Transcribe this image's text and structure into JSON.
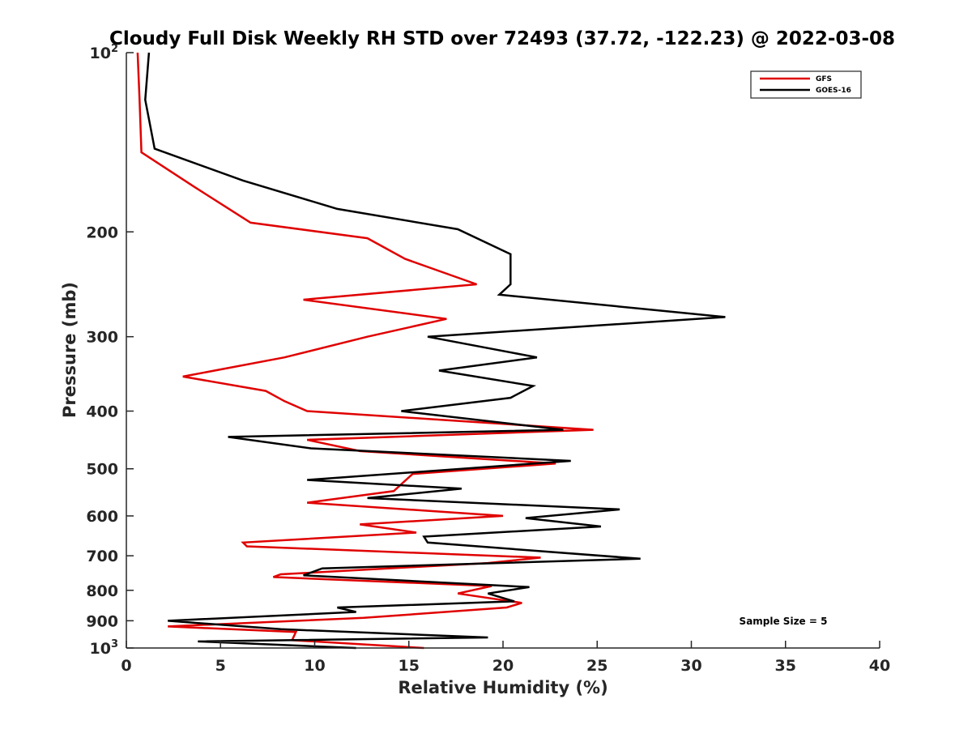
{
  "chart_data": {
    "type": "line",
    "title": "Cloudy Full Disk Weekly RH STD over 72493 (37.72, -122.23) @ 2022-03-08",
    "xlabel": "Relative Humidity (%)",
    "ylabel": "Pressure (mb)",
    "xlim": [
      0,
      40
    ],
    "ylim": [
      100,
      1000
    ],
    "y_scale": "log",
    "y_reversed": true,
    "grid": false,
    "legend_position": "top-right",
    "x_ticks": [
      0,
      5,
      10,
      15,
      20,
      25,
      30,
      35,
      40
    ],
    "x_tick_labels": [
      "0",
      "5",
      "10",
      "15",
      "20",
      "25",
      "30",
      "35",
      "40"
    ],
    "y_ticks": [
      100,
      200,
      300,
      400,
      500,
      600,
      700,
      800,
      900,
      1000
    ],
    "y_tick_labels": [
      {
        "base": "10",
        "exp": "2"
      },
      {
        "base": "200",
        "exp": ""
      },
      {
        "base": "300",
        "exp": ""
      },
      {
        "base": "400",
        "exp": ""
      },
      {
        "base": "500",
        "exp": ""
      },
      {
        "base": "600",
        "exp": ""
      },
      {
        "base": "700",
        "exp": ""
      },
      {
        "base": "800",
        "exp": ""
      },
      {
        "base": "900",
        "exp": ""
      },
      {
        "base": "10",
        "exp": "3"
      }
    ],
    "series": [
      {
        "name": "GFS",
        "color": "#e00000",
        "x": [
          0.6,
          0.7,
          0.8,
          3.6,
          6.6,
          12.8,
          14.8,
          18.6,
          9.4,
          17.0,
          12.8,
          8.4,
          3.0,
          7.4,
          8.4,
          9.6,
          24.8,
          9.6,
          12.4,
          22.8,
          15.2,
          14.2,
          9.6,
          20.0,
          12.4,
          15.4,
          6.2,
          6.4,
          22.0,
          19.2,
          8.2,
          7.8,
          19.4,
          17.6,
          21.0,
          20.2,
          12.6,
          2.2,
          9.0,
          8.8,
          15.8
        ],
        "y": [
          100,
          120,
          147,
          168,
          193,
          205,
          222,
          245,
          260,
          280,
          300,
          325,
          350,
          370,
          385,
          400,
          430,
          447,
          467,
          490,
          510,
          545,
          570,
          600,
          620,
          640,
          665,
          675,
          705,
          720,
          752,
          760,
          787,
          810,
          840,
          855,
          890,
          920,
          940,
          970,
          1000
        ]
      },
      {
        "name": "GOES-16",
        "color": "#000000",
        "x": [
          1.2,
          1.0,
          1.5,
          6.2,
          11.2,
          17.6,
          20.4,
          20.4,
          19.8,
          31.8,
          16.0,
          21.8,
          16.6,
          21.6,
          20.4,
          14.6,
          23.2,
          5.4,
          9.8,
          23.6,
          9.6,
          17.8,
          12.8,
          26.2,
          21.2,
          25.2,
          15.8,
          16.0,
          27.3,
          10.4,
          9.4,
          21.4,
          19.2,
          20.6,
          11.2,
          12.2,
          2.2,
          8.2,
          19.2,
          3.8,
          12.2
        ],
        "y": [
          100,
          120,
          145,
          164,
          183,
          198,
          218,
          245,
          255,
          278,
          300,
          325,
          342,
          363,
          380,
          400,
          430,
          442,
          462,
          485,
          522,
          540,
          560,
          585,
          605,
          625,
          650,
          665,
          708,
          735,
          755,
          790,
          810,
          835,
          855,
          870,
          900,
          930,
          960,
          975,
          1000
        ]
      }
    ],
    "annotations": [
      "Sample Size = 5"
    ]
  }
}
